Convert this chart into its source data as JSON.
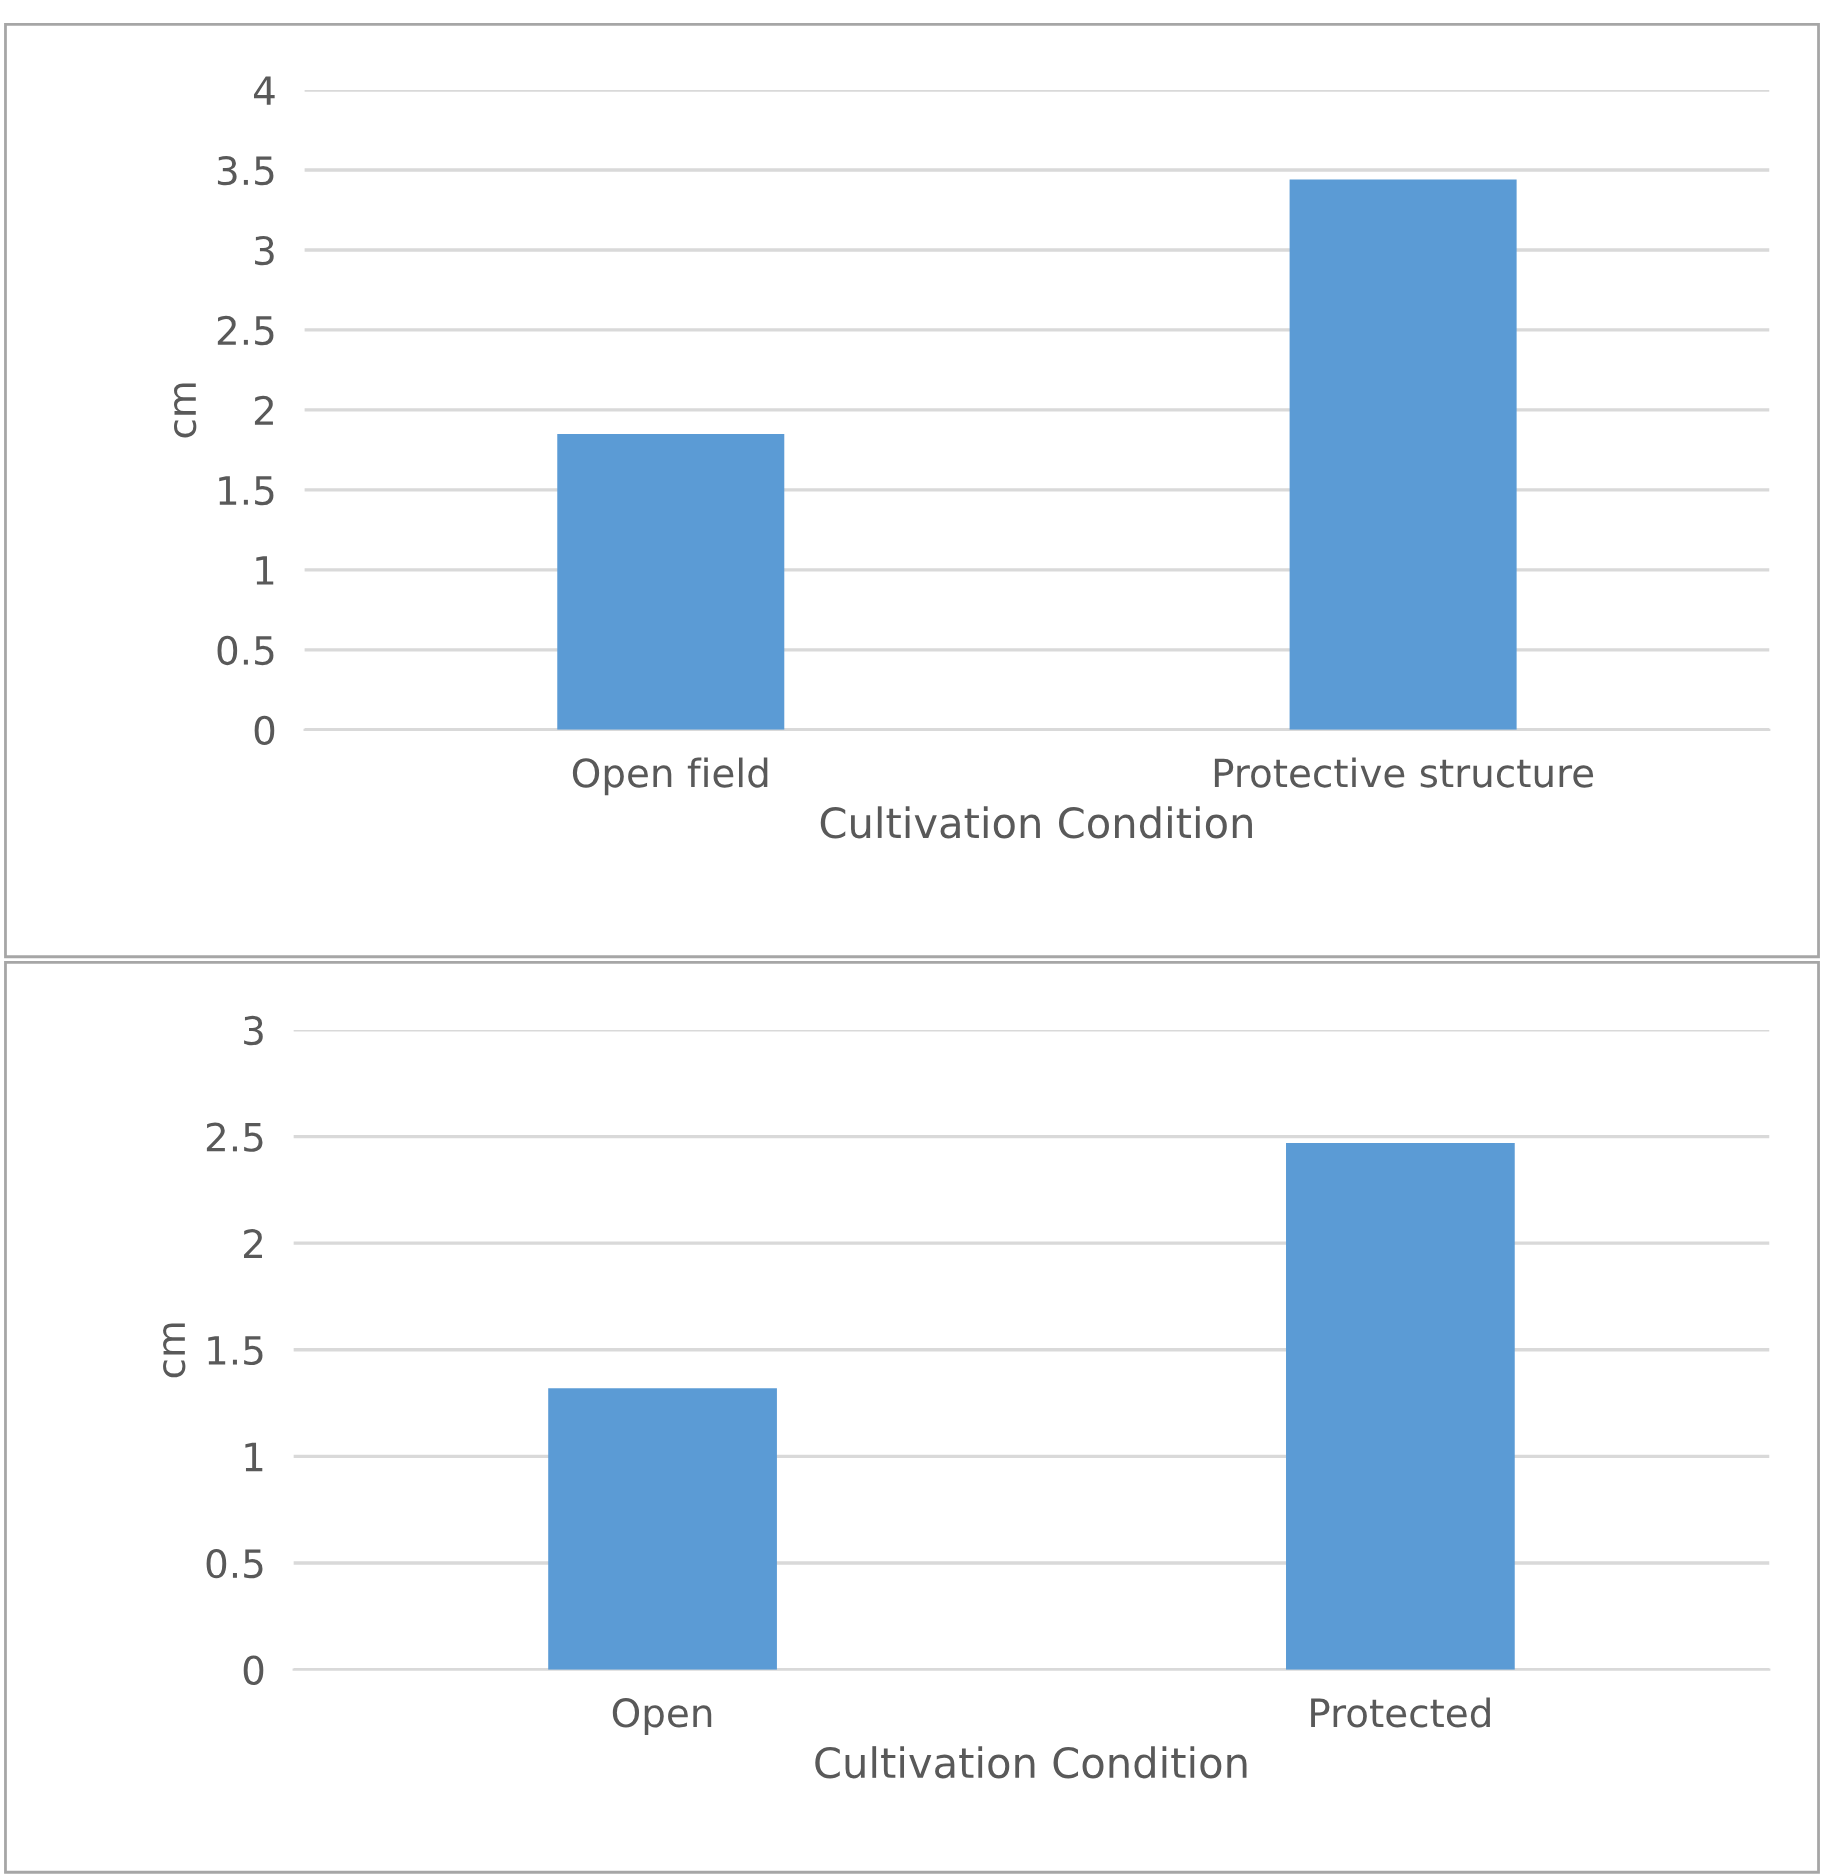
{
  "chart_data": [
    {
      "type": "bar",
      "categories": [
        "Open field",
        "Protective structure"
      ],
      "values": [
        1.85,
        3.44
      ],
      "color": "#5b9bd5",
      "xlabel": "Cultivation Condition",
      "ylabel": "cm",
      "ylim": [
        0,
        4
      ],
      "yticks": [
        0,
        0.5,
        1,
        1.5,
        2,
        2.5,
        3,
        3.5,
        4
      ],
      "grid": "y",
      "legend": false
    },
    {
      "type": "bar",
      "categories": [
        "Open",
        "Protected"
      ],
      "values": [
        1.32,
        2.47
      ],
      "color": "#5b9bd5",
      "xlabel": "Cultivation Condition",
      "ylabel": "cm",
      "ylim": [
        0,
        3
      ],
      "yticks": [
        0,
        0.5,
        1,
        1.5,
        2,
        2.5,
        3
      ],
      "grid": "y",
      "legend": false
    }
  ]
}
